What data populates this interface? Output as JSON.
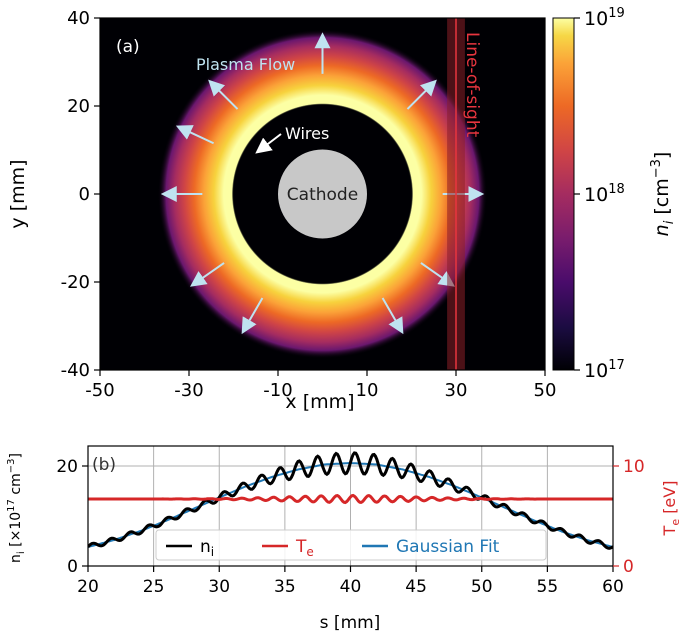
{
  "chart_data": [
    {
      "panel": "(a)",
      "type": "heatmap",
      "xlabel": "x [mm]",
      "ylabel": "y [mm]",
      "xlim": [
        -50,
        50
      ],
      "ylim": [
        -40,
        40
      ],
      "xticks": [
        "-50",
        "-30",
        "-10",
        "10",
        "30",
        "50"
      ],
      "yticks": [
        "40",
        "20",
        "0",
        "-20",
        "-40"
      ],
      "colorbar": {
        "label_main": "n",
        "label_sub": "i",
        "label_unit": " [cm",
        "label_exp": "−3",
        "label_close": "]",
        "scale": "log",
        "range": [
          1e+17,
          1e+19
        ],
        "ticks": [
          {
            "base": "10",
            "exp": "19",
            "value": 1e+19
          },
          {
            "base": "10",
            "exp": "18",
            "value": 1e+18
          },
          {
            "base": "10",
            "exp": "17",
            "value": 1e+17
          }
        ],
        "colormap": "inferno"
      },
      "density_ring": {
        "inner_radius_mm": 20,
        "peak_radius_mm": 22,
        "outer_radius_mm": 37,
        "peak_value": 1e+19,
        "falloff": "gradual decrease outward to 1e17"
      },
      "cathode": {
        "label": "Cathode",
        "radius_mm": 10,
        "color": "#c8c8c8"
      },
      "wires_label": "Wires",
      "flow_label": "Plasma Flow",
      "flow_arrow_angles_deg": [
        90,
        45,
        0,
        -35,
        -60,
        -120,
        -145,
        180,
        155,
        135
      ],
      "line_of_sight": {
        "label": "Line-of-sight",
        "x_mm": 30,
        "x_range_mm": [
          28,
          32
        ],
        "color": "#e8353f"
      },
      "annotations": []
    },
    {
      "panel": "(b)",
      "type": "line",
      "xlabel": "s [mm]",
      "xlim": [
        20,
        60
      ],
      "xticks": [
        "20",
        "25",
        "30",
        "35",
        "40",
        "45",
        "50",
        "55",
        "60"
      ],
      "ylabel_left_main": "n",
      "ylabel_left_sub": "i",
      "ylabel_left_rest": " [×10",
      "ylabel_left_exp": "17",
      "ylabel_left_unit": " cm",
      "ylabel_left_unit_exp": "−3",
      "ylabel_left_close": "]",
      "ylim_left": [
        0,
        24
      ],
      "yticks_left": [
        "0",
        "20"
      ],
      "ylabel_right_main": "T",
      "ylabel_right_sub": "e",
      "ylabel_right_unit": " [eV]",
      "ylim_right": [
        0,
        12
      ],
      "yticks_right": [
        "0",
        "10"
      ],
      "grid": true,
      "legend_position": "bottom-center",
      "series": [
        {
          "name": "n",
          "sub": "i",
          "color": "#000000",
          "axis": "left",
          "x": [
            20,
            22,
            24,
            26,
            28,
            30,
            32,
            34,
            36,
            38,
            40,
            42,
            44,
            46,
            48,
            50,
            52,
            54,
            56,
            58,
            60
          ],
          "y": [
            3.8,
            5.2,
            7.0,
            9.1,
            11.4,
            13.7,
            15.9,
            17.8,
            19.3,
            20.3,
            20.6,
            20.3,
            19.3,
            17.8,
            15.9,
            13.7,
            11.4,
            9.1,
            7.0,
            5.2,
            3.8
          ],
          "oscillation": "small wiggles, larger near the center"
        },
        {
          "name": "T",
          "sub": "e",
          "color": "#d62728",
          "axis": "right",
          "x": [
            20,
            30,
            40,
            50,
            60
          ],
          "y": [
            6.7,
            6.7,
            6.7,
            6.7,
            6.7
          ],
          "oscillation": "slight ripple near the center"
        },
        {
          "name": "Gaussian Fit",
          "color": "#1f77b4",
          "axis": "left",
          "x": [
            20,
            22,
            24,
            26,
            28,
            30,
            32,
            34,
            36,
            38,
            40,
            42,
            44,
            46,
            48,
            50,
            52,
            54,
            56,
            58,
            60
          ],
          "y": [
            3.8,
            5.2,
            7.0,
            9.1,
            11.4,
            13.7,
            15.9,
            17.8,
            19.3,
            20.3,
            20.6,
            20.3,
            19.3,
            17.8,
            15.9,
            13.7,
            11.4,
            9.1,
            7.0,
            5.2,
            3.8
          ]
        }
      ]
    }
  ]
}
